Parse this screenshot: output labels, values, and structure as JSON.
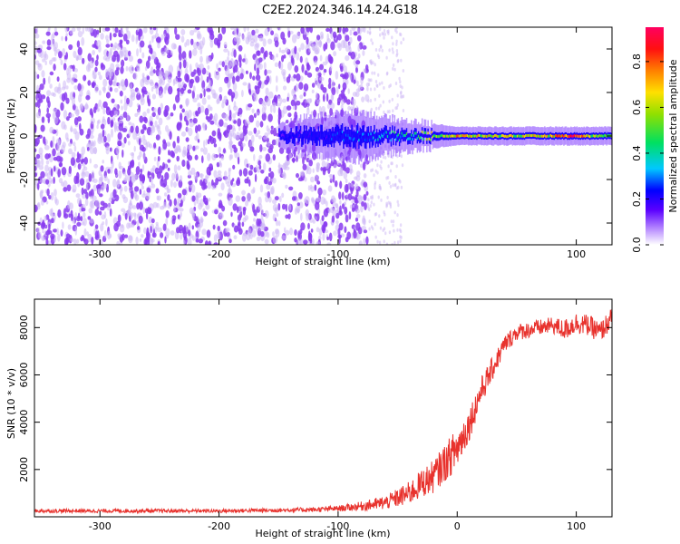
{
  "title": "C2E2.2024.346.14.24.G18",
  "colors": {
    "line": "#e8322d",
    "frame": "#000000",
    "speckle": "#8a3cf0",
    "speckle_light": "#cdb8f5"
  },
  "chart_data": [
    {
      "type": "heatmap",
      "xlabel": "Height of straight line (km)",
      "ylabel": "Frequency (Hz)",
      "xlim": [
        -355,
        130
      ],
      "ylim": [
        -50,
        50
      ],
      "xticks": [
        -300,
        -200,
        -100,
        0,
        100
      ],
      "yticks": [
        -40,
        -20,
        0,
        20,
        40
      ],
      "colorbar": {
        "label": "Normalized spectral amplitude",
        "range": [
          0,
          0.95
        ],
        "ticks": [
          0.0,
          0.2,
          0.4,
          0.6,
          0.8
        ]
      },
      "noise_region": {
        "x_from": -355,
        "x_to": -75,
        "density": "high"
      },
      "faint_noise_region": {
        "x_from": -75,
        "x_to": -45,
        "density": "low"
      },
      "signal_band": [
        {
          "x": -150,
          "width_hz": 4,
          "amp": 0.18
        },
        {
          "x": -130,
          "width_hz": 6,
          "amp": 0.2
        },
        {
          "x": -110,
          "width_hz": 7,
          "amp": 0.22
        },
        {
          "x": -95,
          "width_hz": 8,
          "amp": 0.28
        },
        {
          "x": -80,
          "width_hz": 8,
          "amp": 0.3
        },
        {
          "x": -60,
          "width_hz": 6,
          "amp": 0.35
        },
        {
          "x": -40,
          "width_hz": 5,
          "amp": 0.45
        },
        {
          "x": -20,
          "width_hz": 4,
          "amp": 0.6
        },
        {
          "x": 0,
          "width_hz": 3,
          "amp": 0.7
        },
        {
          "x": 20,
          "width_hz": 3,
          "amp": 0.65
        },
        {
          "x": 50,
          "width_hz": 3,
          "amp": 0.6
        },
        {
          "x": 80,
          "width_hz": 3,
          "amp": 0.65
        },
        {
          "x": 95,
          "width_hz": 3,
          "amp": 0.9
        },
        {
          "x": 110,
          "width_hz": 3,
          "amp": 0.6
        },
        {
          "x": 130,
          "width_hz": 3,
          "amp": 0.55
        }
      ]
    },
    {
      "type": "line",
      "xlabel": "Height of straight line (km)",
      "ylabel": "SNR (10 * v/v)",
      "xlim": [
        -355,
        130
      ],
      "ylim": [
        0,
        9200
      ],
      "xticks": [
        -300,
        -200,
        -100,
        0,
        100
      ],
      "yticks": [
        2000,
        4000,
        6000,
        8000
      ],
      "series": [
        {
          "x": [
            -355,
            -300,
            -250,
            -200,
            -150,
            -120,
            -100,
            -80,
            -60,
            -50,
            -40,
            -30,
            -20,
            -10,
            0,
            10,
            20,
            30,
            40,
            50,
            60,
            70,
            80,
            90,
            100,
            110,
            120,
            130
          ],
          "y": [
            250,
            250,
            250,
            250,
            280,
            300,
            350,
            450,
            600,
            800,
            1000,
            1400,
            1700,
            2300,
            2900,
            3900,
            5300,
            6300,
            7300,
            7800,
            7900,
            8000,
            8100,
            7900,
            8200,
            8100,
            7800,
            8400
          ],
          "noise": [
            80,
            80,
            80,
            80,
            90,
            100,
            120,
            200,
            300,
            400,
            500,
            600,
            700,
            800,
            900,
            700,
            600,
            500,
            400,
            350,
            350,
            350,
            350,
            450,
            450,
            450,
            450,
            450
          ]
        }
      ]
    }
  ]
}
